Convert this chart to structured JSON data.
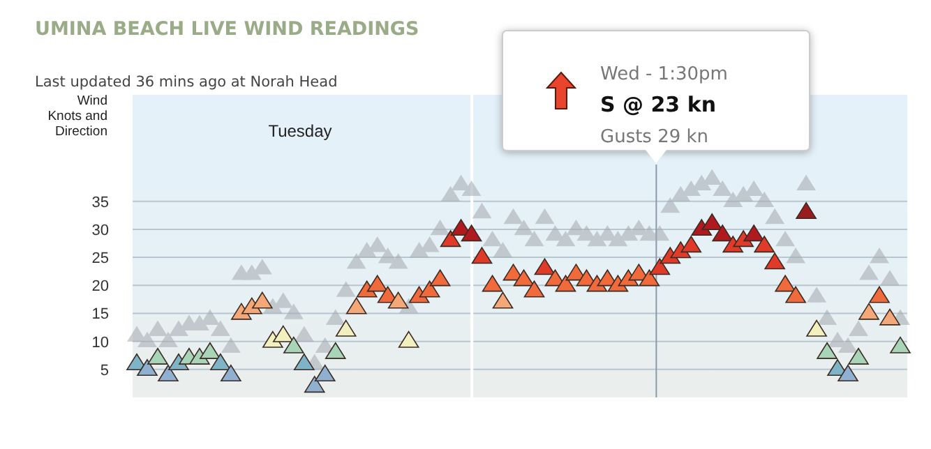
{
  "chart_data": {
    "type": "scatter",
    "title": "UMINA BEACH LIVE WIND READINGS",
    "subtitle": "Last updated 36 mins ago at Norah Head",
    "ylabel": "Wind Knots and Direction",
    "categories": [
      null,
      null,
      null,
      null,
      null,
      null,
      null,
      null,
      null,
      null,
      null,
      null,
      null,
      null,
      null,
      null,
      null,
      null,
      null,
      null,
      null,
      null,
      null,
      null,
      null,
      null,
      null,
      null,
      null,
      null,
      null,
      null,
      null,
      null,
      null,
      null,
      null,
      null,
      null,
      null,
      null,
      null,
      null,
      null,
      null,
      null,
      null,
      null,
      null,
      null,
      null,
      null,
      null,
      null,
      null,
      null,
      null,
      null,
      null,
      null,
      null,
      null,
      null,
      null,
      null,
      null,
      null,
      null,
      null,
      null,
      null,
      null,
      null,
      null
    ],
    "series": [
      {
        "color": "#a4aab0",
        "values": [
          11,
          10,
          12,
          10,
          12,
          13,
          13,
          14,
          12,
          9,
          22,
          22,
          23,
          16,
          17,
          15,
          11,
          6,
          9,
          14,
          19,
          24,
          26,
          27,
          25,
          24,
          16,
          26,
          27,
          30,
          36,
          38,
          37,
          33,
          28,
          26,
          32,
          30,
          28,
          32,
          29,
          28,
          30,
          29,
          28,
          29,
          28,
          29,
          30,
          29,
          29,
          34,
          36,
          37,
          38,
          39,
          37,
          35,
          36,
          37,
          35,
          32,
          28,
          25,
          38,
          18,
          14,
          10,
          9,
          12,
          22,
          25,
          21,
          14
        ]
      },
      {
        "colors": [
          "#7fb3c8",
          "#8fb0d0",
          "#a8d4b8",
          "#8fb0d0",
          "#7fb3c8",
          "#a8d4b8",
          "#a8d4b8",
          "#a8d4b8",
          "#7fb3c8",
          "#8fb0d0",
          "#f5a877",
          "#f5a877",
          "#f5a877",
          "#f3f0c0",
          "#f3f0c0",
          "#a8d4b8",
          "#7fb3c8",
          "#8fb0d0",
          "#8fb0d0",
          "#a8d4b8",
          "#f3f0c0",
          "#f5a877",
          "#f06a3c",
          "#f06a3c",
          "#f06a3c",
          "#f5a877",
          "#f3f0c0",
          "#f06a3c",
          "#f06a3c",
          "#f06a3c",
          "#e03a28",
          "#b0191e",
          "#b0191e",
          "#e03a28",
          "#f06a3c",
          "#f5a877",
          "#f06a3c",
          "#f06a3c",
          "#f06a3c",
          "#e03a28",
          "#f06a3c",
          "#f06a3c",
          "#f06a3c",
          "#f06a3c",
          "#f06a3c",
          "#f06a3c",
          "#f06a3c",
          "#f06a3c",
          "#f06a3c",
          "#f06a3c",
          "#e03a28",
          "#e03a28",
          "#e03a28",
          "#e03a28",
          "#b0191e",
          "#b0191e",
          "#b0191e",
          "#e03a28",
          "#e03a28",
          "#b0191e",
          "#e03a28",
          "#e03a28",
          "#f06a3c",
          "#f06a3c",
          "#9b1c1c",
          "#f3f0c0",
          "#a8d4b8",
          "#7fb3c8",
          "#8fb0d0",
          "#a8d4b8",
          "#f5a877",
          "#f06a3c",
          "#f5a877",
          "#a8d4b8"
        ],
        "values": [
          6,
          5,
          7,
          4,
          6,
          7,
          7,
          8,
          6,
          4,
          15,
          16,
          17,
          10,
          11,
          9,
          6,
          2,
          4,
          8,
          12,
          16,
          19,
          20,
          18,
          17,
          10,
          18,
          19,
          21,
          28,
          30,
          29,
          25,
          20,
          17,
          22,
          21,
          19,
          23,
          21,
          20,
          22,
          21,
          20,
          21,
          20,
          21,
          22,
          21,
          23,
          25,
          26,
          27,
          30,
          31,
          29,
          27,
          28,
          29,
          27,
          24,
          20,
          18,
          33,
          12,
          8,
          5,
          4,
          7,
          15,
          18,
          14,
          9
        ]
      }
    ],
    "ylim": [
      0,
      54
    ],
    "yticks": [
      5,
      10,
      15,
      20,
      25,
      30,
      35
    ],
    "grid": "y",
    "marker": "triangle",
    "annotations": [
      "Tuesday",
      "Wed - 1:30pm",
      "S @ 23 kn",
      "Gusts 29 kn"
    ]
  }
}
